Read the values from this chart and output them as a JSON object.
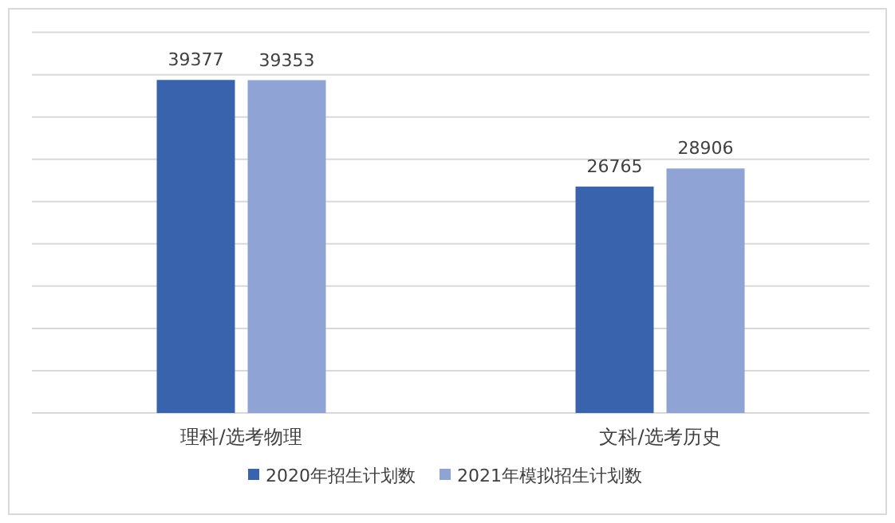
{
  "chart_data": {
    "type": "bar",
    "categories": [
      "理科/选考物理",
      "文科/选考历史"
    ],
    "series": [
      {
        "name": "2020年招生计划数",
        "color": "#3a63ad",
        "values": [
          39377,
          26765
        ]
      },
      {
        "name": "2021年模拟招生计划数",
        "color": "#8fa3d4",
        "values": [
          39353,
          28906
        ]
      }
    ],
    "ylim": [
      0,
      45000
    ],
    "yticks": [
      {
        "value": 0,
        "label": null
      },
      {
        "value": 5000,
        "label": null
      },
      {
        "value": 10000,
        "label": null
      },
      {
        "value": 15000,
        "label": null
      },
      {
        "value": 20000,
        "label": null
      },
      {
        "value": 25000,
        "label": null
      },
      {
        "value": 30000,
        "label": null
      },
      {
        "value": 35000,
        "label": null
      },
      {
        "value": 40000,
        "label": null
      },
      {
        "value": 45000,
        "label": null
      }
    ],
    "grid": "y",
    "data_labels": true,
    "legend": "bottom",
    "tick_labels": "x"
  }
}
